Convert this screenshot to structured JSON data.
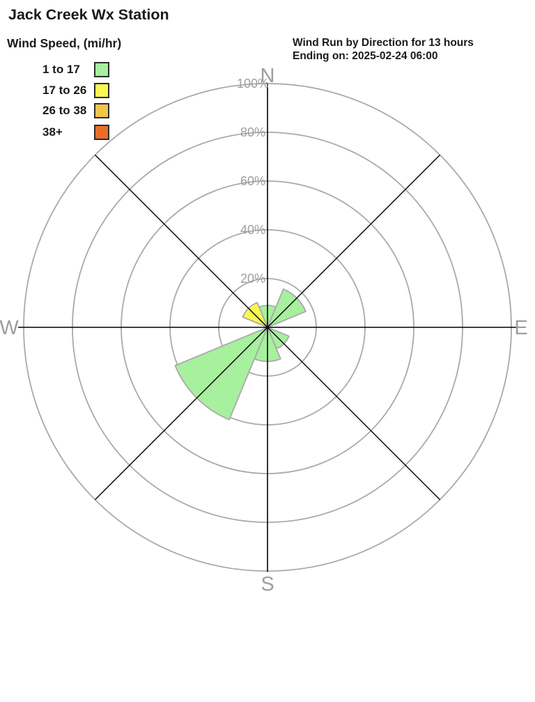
{
  "page": {
    "title": "Jack Creek Wx Station"
  },
  "legend": {
    "title": "Wind Speed, (mi/hr)",
    "items": [
      {
        "label": "1 to 17",
        "color": "#a7f09e"
      },
      {
        "label": "17 to 26",
        "color": "#f9f952"
      },
      {
        "label": "26 to 38",
        "color": "#f1c64b"
      },
      {
        "label": "38+",
        "color": "#e96f28"
      }
    ]
  },
  "header": {
    "line1": "Wind Run by Direction for 13 hours",
    "line2": "Ending on: 2025-02-24 06:00"
  },
  "chart_data": {
    "type": "windrose",
    "title": "Wind Run by Direction for 13 hours",
    "subtitle": "Ending on: 2025-02-24 06:00",
    "value_unit": "percent_of_wind_run",
    "axis_max_percent": 100,
    "ring_ticks": [
      20,
      40,
      60,
      80,
      100
    ],
    "ring_tick_labels": [
      "20%",
      "40%",
      "60%",
      "80%",
      "100%"
    ],
    "compass_labels": {
      "n": "N",
      "e": "E",
      "s": "S",
      "w": "W"
    },
    "directions": [
      "N",
      "NE",
      "E",
      "SE",
      "S",
      "SW",
      "W",
      "NW"
    ],
    "sector_width_deg": 45,
    "series": [
      {
        "name": "1 to 17",
        "color": "#a7f09e",
        "values": [
          9,
          17,
          0,
          9.5,
          14,
          41,
          0,
          0
        ]
      },
      {
        "name": "17 to 26",
        "color": "#f9f952",
        "values": [
          0,
          0,
          0,
          0,
          0,
          0,
          0,
          11
        ]
      },
      {
        "name": "26 to 38",
        "color": "#f1c64b",
        "values": [
          0,
          0,
          0,
          0,
          0,
          0,
          0,
          0
        ]
      },
      {
        "name": "38+",
        "color": "#e96f28",
        "values": [
          0,
          0,
          0,
          0,
          0,
          0,
          0,
          0
        ]
      }
    ],
    "grid_color": "#a9a9a9",
    "axis_color": "#000000",
    "label_color": "#9e9e9e"
  }
}
